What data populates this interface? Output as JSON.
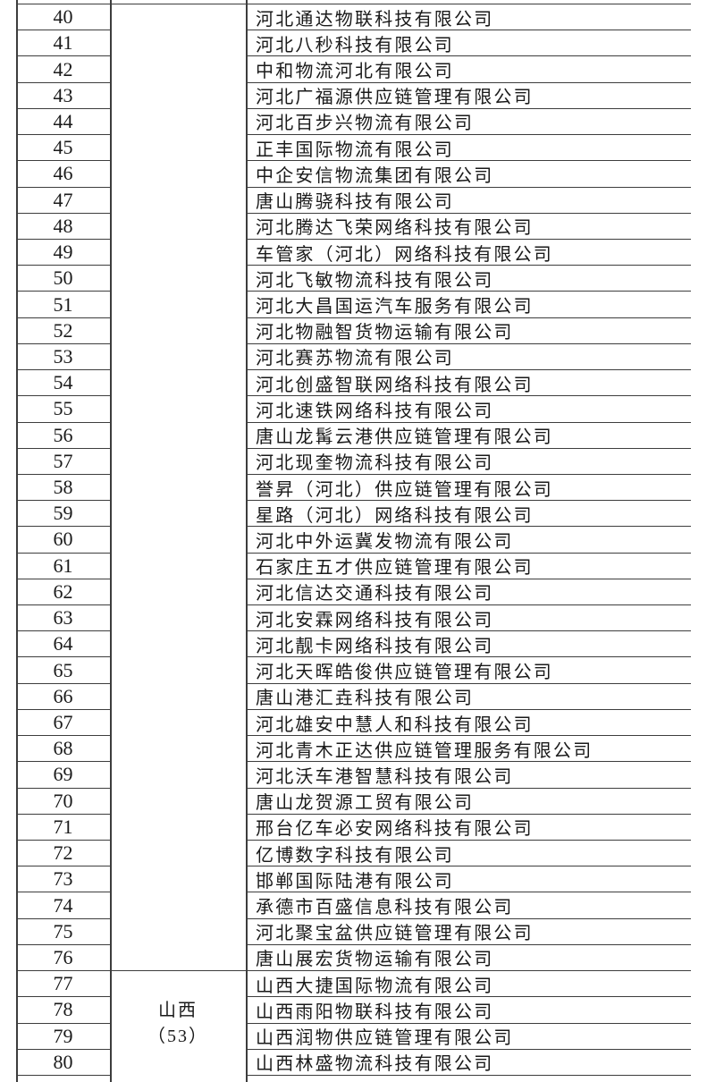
{
  "colors": {
    "background": "#ffffff",
    "grid_line": "#3d3d3d",
    "text": "#1a1a1a"
  },
  "table": {
    "groups": [
      {
        "province_label_lines": [],
        "rows": [
          {
            "no": "40",
            "company": "河北通达物联科技有限公司"
          },
          {
            "no": "41",
            "company": "河北八秒科技有限公司"
          },
          {
            "no": "42",
            "company": "中和物流河北有限公司"
          },
          {
            "no": "43",
            "company": "河北广福源供应链管理有限公司"
          },
          {
            "no": "44",
            "company": "河北百步兴物流有限公司"
          },
          {
            "no": "45",
            "company": "正丰国际物流有限公司"
          },
          {
            "no": "46",
            "company": "中企安信物流集团有限公司"
          },
          {
            "no": "47",
            "company": "唐山腾骁科技有限公司"
          },
          {
            "no": "48",
            "company": "河北腾达飞荣网络科技有限公司"
          },
          {
            "no": "49",
            "company": "车管家（河北）网络科技有限公司"
          },
          {
            "no": "50",
            "company": "河北飞敏物流科技有限公司"
          },
          {
            "no": "51",
            "company": "河北大昌国运汽车服务有限公司"
          },
          {
            "no": "52",
            "company": "河北物融智货物运输有限公司"
          },
          {
            "no": "53",
            "company": "河北赛苏物流有限公司"
          },
          {
            "no": "54",
            "company": "河北创盛智联网络科技有限公司"
          },
          {
            "no": "55",
            "company": "河北速铁网络科技有限公司"
          },
          {
            "no": "56",
            "company": "唐山龙髯云港供应链管理有限公司"
          },
          {
            "no": "57",
            "company": "河北现奎物流科技有限公司"
          },
          {
            "no": "58",
            "company": "誉昇（河北）供应链管理有限公司"
          },
          {
            "no": "59",
            "company": "星路（河北）网络科技有限公司"
          },
          {
            "no": "60",
            "company": "河北中外运冀发物流有限公司"
          },
          {
            "no": "61",
            "company": "石家庄五才供应链管理有限公司"
          },
          {
            "no": "62",
            "company": "河北信达交通科技有限公司"
          },
          {
            "no": "63",
            "company": "河北安霖网络科技有限公司"
          },
          {
            "no": "64",
            "company": "河北靓卡网络科技有限公司"
          },
          {
            "no": "65",
            "company": "河北天晖皓俊供应链管理有限公司"
          },
          {
            "no": "66",
            "company": "唐山港汇垚科技有限公司"
          },
          {
            "no": "67",
            "company": "河北雄安中慧人和科技有限公司"
          },
          {
            "no": "68",
            "company": "河北青木正达供应链管理服务有限公司"
          },
          {
            "no": "69",
            "company": "河北沃车港智慧科技有限公司"
          },
          {
            "no": "70",
            "company": "唐山龙贺源工贸有限公司"
          },
          {
            "no": "71",
            "company": "邢台亿车必安网络科技有限公司"
          },
          {
            "no": "72",
            "company": "亿博数字科技有限公司"
          },
          {
            "no": "73",
            "company": "邯郸国际陆港有限公司"
          },
          {
            "no": "74",
            "company": "承德市百盛信息科技有限公司"
          },
          {
            "no": "75",
            "company": "河北聚宝盆供应链管理有限公司"
          },
          {
            "no": "76",
            "company": "唐山展宏货物运输有限公司"
          }
        ]
      },
      {
        "province_label_lines": [
          "山西",
          "（53）"
        ],
        "rows": [
          {
            "no": "77",
            "company": "山西大捷国际物流有限公司"
          },
          {
            "no": "78",
            "company": "山西雨阳物联科技有限公司"
          },
          {
            "no": "79",
            "company": "山西润物供应链管理有限公司"
          },
          {
            "no": "80",
            "company": "山西林盛物流科技有限公司"
          }
        ]
      }
    ]
  }
}
